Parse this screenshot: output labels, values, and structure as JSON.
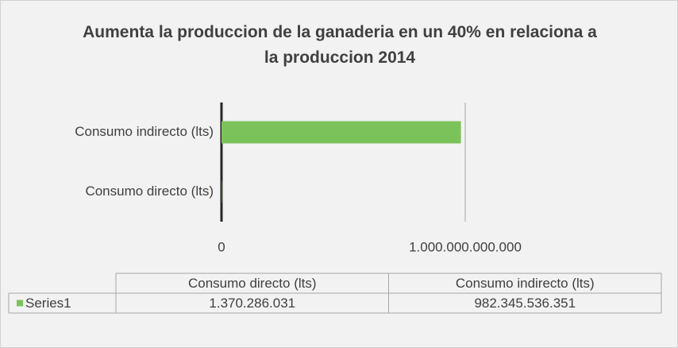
{
  "chart_data": {
    "type": "bar",
    "orientation": "horizontal",
    "title": "Aumenta la produccion de la ganaderia en un 40% en relaciona a la produccion 2014",
    "categories": [
      "Consumo directo (lts)",
      "Consumo indirecto (lts)"
    ],
    "series": [
      {
        "name": "Series1",
        "color": "#7cc25a",
        "values": [
          1370286031,
          982345536351
        ],
        "value_labels": [
          "1.370.286.031",
          "982.345.536.351"
        ]
      }
    ],
    "xlim": [
      0,
      1000000000000
    ],
    "xticks": [
      0,
      {
        "value": 1000000000000,
        "label": "1.000.000.000.000"
      }
    ],
    "grid": true,
    "data_table": true
  }
}
